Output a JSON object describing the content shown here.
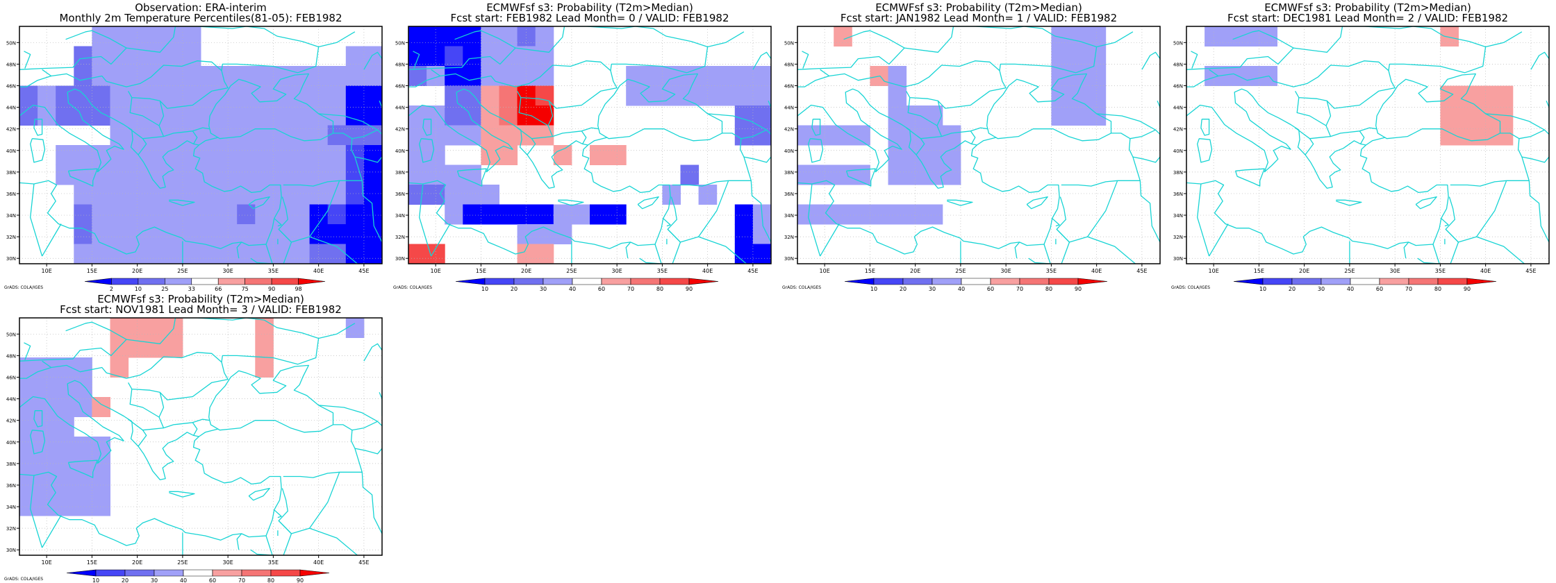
{
  "colors": {
    "coast": "#17d4d4",
    "frame": "#000000",
    "obs_scale": [
      "#0000ff",
      "#4646f6",
      "#7070f0",
      "#a0a0f8",
      "#ffffff",
      "#f8a0a0",
      "#f57575",
      "#f54848",
      "#f50000"
    ],
    "prob_scale": [
      "#0000ff",
      "#4646f6",
      "#7070f0",
      "#a0a0f8",
      "#ffffff",
      "#f8a0a0",
      "#f57575",
      "#f54848",
      "#f50000"
    ]
  },
  "axes": {
    "lon_ticks": [
      "10E",
      "15E",
      "20E",
      "25E",
      "30E",
      "35E",
      "40E",
      "45E"
    ],
    "lat_ticks": [
      "30N",
      "32N",
      "34N",
      "36N",
      "38N",
      "40N",
      "42N",
      "44N",
      "46N",
      "48N",
      "50N"
    ]
  },
  "credit": "GrADS: COLA/IGES",
  "panels": [
    {
      "title1": "Observation: ERA-interim",
      "title2": "Monthly 2m Temperature Percentiles(81-05): FEB1982",
      "legend": [
        "2",
        "10",
        "25",
        "33",
        "66",
        "75",
        "90",
        "98"
      ],
      "grid": [
        "00004444440000000000",
        "00034444440000000044",
        "00034444444444444444",
        "34333444444444444411",
        "34333444444444444411",
        "00000444444444444333",
        "00444444444444444421",
        "00444444444444444421",
        "00044444444444444421",
        "00034444444434441211",
        "00034444444444441111",
        "00044444444444443311"
      ]
    },
    {
      "title1": "ECMWFsf s3: Probability (T2m>Median)",
      "title2": "Fcst start: FEB1982  Lead Month= 0 / VALID: FEB1982",
      "legend": [
        "10",
        "20",
        "30",
        "40",
        "60",
        "70",
        "80",
        "90"
      ],
      "grid": [
        "11114434000000000000",
        "11214444000000000000",
        "34114444000044444444",
        "00336798000044444444",
        "44336799000000000033",
        "44446666000000000033",
        "44006600606600000000",
        "44440000000000030000",
        "33444000000000404000",
        "00411111441100000014",
        "00000044400000000014",
        "88000066000000000011"
      ]
    },
    {
      "title1": "ECMWFsf s3: Probability (T2m>Median)",
      "title2": "Fcst start: JAN1982  Lead Month= 1 / VALID: FEB1982",
      "legend": [
        "10",
        "20",
        "30",
        "40",
        "60",
        "70",
        "80",
        "90"
      ],
      "grid": [
        "00600000000000444000",
        "00000000000000444000",
        "00006400000000444000",
        "00000400000000444000",
        "00000444000000444000",
        "44440444400000000000",
        "00000444400000000000",
        "44440444400000000000",
        "00000000000000000000",
        "44444444000000000000",
        "00000000000000000000",
        "00000000000000000000"
      ]
    },
    {
      "title1": "ECMWFsf s3: Probability (T2m>Median)",
      "title2": "Fcst start: DEC1981  Lead Month= 2 / VALID: FEB1982",
      "legend": [
        "10",
        "20",
        "30",
        "40",
        "60",
        "70",
        "80",
        "90"
      ],
      "grid": [
        "04444000000000600000",
        "00000000000000000000",
        "04444000000000000000",
        "00000000000000666600",
        "00000000000000666600",
        "00000000000000666600",
        "00000000000000000000",
        "00000000000000000000",
        "00000000000000000000",
        "00000000000000000000",
        "00000000000000000000",
        "00000000000000000000"
      ]
    },
    {
      "title1": "ECMWFsf s3: Probability (T2m>Median)",
      "title2": "Fcst start: NOV1981  Lead Month= 3 / VALID: FEB1982",
      "legend": [
        "10",
        "20",
        "30",
        "40",
        "60",
        "70",
        "80",
        "90"
      ],
      "grid": [
        "00000666600006000040",
        "00000666600006000000",
        "44440600000006000000",
        "44440000000000000000",
        "44446000000000000000",
        "44400000000000000000",
        "44444000000000000000",
        "44444000000000000000",
        "44444000000000000000",
        "44444000000000000000",
        "00000000000000000000",
        "00000000000000000000"
      ]
    }
  ]
}
